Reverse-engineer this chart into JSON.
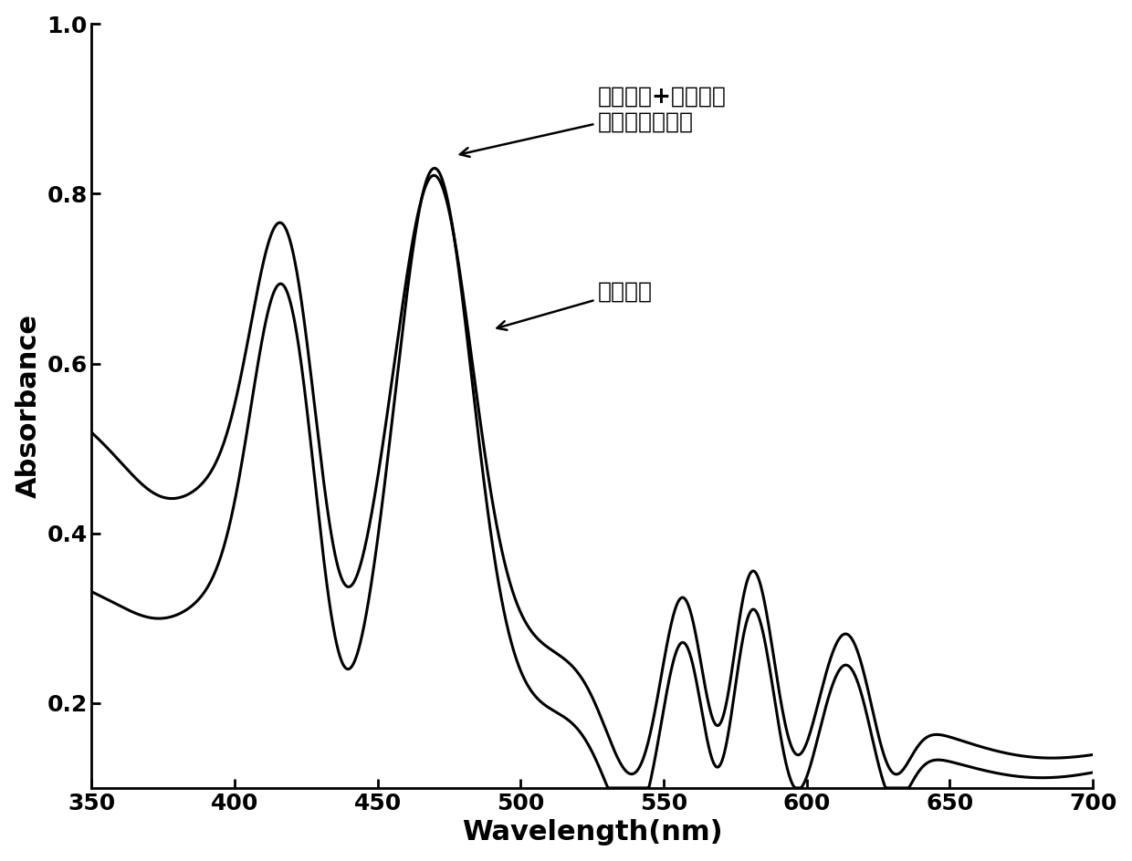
{
  "xlabel": "Wavelength(nm)",
  "ylabel": "Absorbance",
  "xlim": [
    350,
    700
  ],
  "ylim": [
    0.1,
    1.0
  ],
  "xticks": [
    350,
    400,
    450,
    500,
    550,
    600,
    650,
    700
  ],
  "yticks": [
    0.2,
    0.4,
    0.6,
    0.8,
    1.0
  ],
  "line_color": "#000000",
  "line_width": 2.2,
  "annotation1": "纳米卜啊+邻苯二甲\n酸二乙基己基酯",
  "annotation2": "纳米卜啊",
  "background_color": "#ffffff",
  "font_color": "#000000",
  "tick_fontsize": 18,
  "label_fontsize": 22,
  "annotation_fontsize": 18
}
